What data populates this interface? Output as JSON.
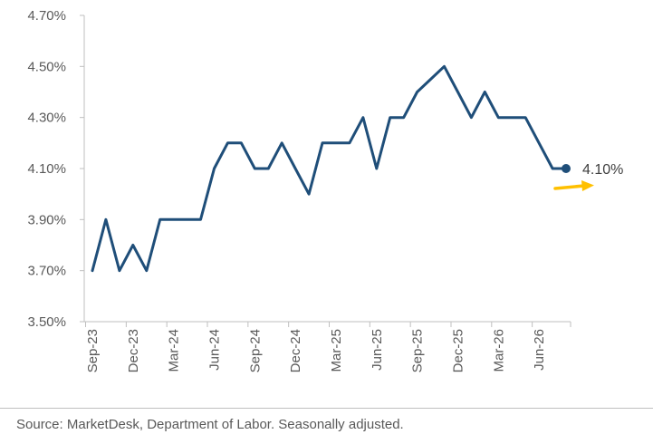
{
  "chart_data": {
    "type": "line",
    "x": [
      "Sep-23",
      "Oct-23",
      "Nov-23",
      "Dec-23",
      "Jan-24",
      "Feb-24",
      "Mar-24",
      "Apr-24",
      "May-24",
      "Jun-24",
      "Jul-24",
      "Aug-24",
      "Sep-24",
      "Oct-24",
      "Nov-24",
      "Dec-24",
      "Jan-25",
      "Feb-25",
      "Mar-25",
      "Apr-25",
      "May-25",
      "Jun-25",
      "Jul-25",
      "Aug-25",
      "Sep-25",
      "Oct-25",
      "Nov-25",
      "Dec-25",
      "Jan-26",
      "Feb-26",
      "Mar-26",
      "Apr-26",
      "May-26",
      "Jun-26",
      "Jul-26",
      "Aug-26"
    ],
    "x_tick_labels": [
      "Sep-23",
      "Dec-23",
      "Mar-24",
      "Jun-24",
      "Sep-24",
      "Dec-24",
      "Mar-25",
      "Jun-25",
      "Sep-25",
      "Dec-25",
      "Mar-26",
      "Jun-26"
    ],
    "series": [
      {
        "values": [
          3.7,
          3.9,
          3.7,
          3.8,
          3.7,
          3.9,
          3.9,
          3.9,
          3.9,
          4.1,
          4.2,
          4.2,
          4.1,
          4.1,
          4.2,
          4.1,
          4.0,
          4.2,
          4.2,
          4.2,
          4.3,
          4.1,
          4.3,
          4.3,
          4.4,
          4.45,
          4.5,
          4.4,
          4.3,
          4.4,
          4.3,
          4.3,
          4.3,
          4.2,
          4.1,
          4.1
        ]
      }
    ],
    "y_ticks": [
      "3.50%",
      "3.70%",
      "3.90%",
      "4.10%",
      "4.30%",
      "4.50%",
      "4.70%"
    ],
    "ylim": [
      3.5,
      4.7
    ],
    "end_label": "4.10%",
    "grid": false,
    "colors": {
      "line": "#1f4e79",
      "arrow": "#ffc000",
      "axis": "#bfbfbf",
      "text": "#595959"
    },
    "source": "Source: MarketDesk, Department of Labor. Seasonally adjusted."
  }
}
